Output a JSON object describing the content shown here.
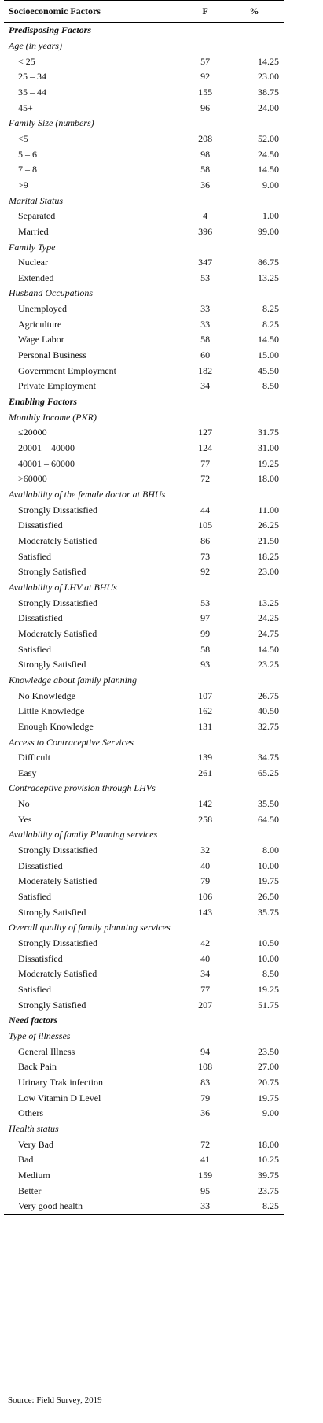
{
  "header": {
    "col1": "Socioeconomic Factors",
    "col2": "F",
    "col3": "%"
  },
  "rows": [
    {
      "kind": "section",
      "label": "Predisposing Factors"
    },
    {
      "kind": "sub",
      "label": "Age (in years)"
    },
    {
      "kind": "item",
      "label": "< 25",
      "f": "57",
      "pct": "14.25"
    },
    {
      "kind": "item",
      "label": "25 – 34",
      "f": "92",
      "pct": "23.00"
    },
    {
      "kind": "item",
      "label": "35 – 44",
      "f": "155",
      "pct": "38.75"
    },
    {
      "kind": "item",
      "label": "45+",
      "f": "96",
      "pct": "24.00"
    },
    {
      "kind": "sub",
      "label": "Family Size (numbers)"
    },
    {
      "kind": "item",
      "label": "<5",
      "f": "208",
      "pct": "52.00"
    },
    {
      "kind": "item",
      "label": "5 – 6",
      "f": "98",
      "pct": "24.50"
    },
    {
      "kind": "item",
      "label": "7 – 8",
      "f": "58",
      "pct": "14.50"
    },
    {
      "kind": "item",
      "label": ">9",
      "f": "36",
      "pct": "9.00"
    },
    {
      "kind": "sub",
      "label": "Marital Status"
    },
    {
      "kind": "item",
      "label": "Separated",
      "f": "4",
      "pct": "1.00"
    },
    {
      "kind": "item",
      "label": "Married",
      "f": "396",
      "pct": "99.00"
    },
    {
      "kind": "sub",
      "label": "Family Type"
    },
    {
      "kind": "item",
      "label": "Nuclear",
      "f": "347",
      "pct": "86.75"
    },
    {
      "kind": "item",
      "label": "Extended",
      "f": "53",
      "pct": "13.25"
    },
    {
      "kind": "sub",
      "label": "Husband Occupations"
    },
    {
      "kind": "item",
      "label": "Unemployed",
      "f": "33",
      "pct": "8.25"
    },
    {
      "kind": "item",
      "label": "Agriculture",
      "f": "33",
      "pct": "8.25"
    },
    {
      "kind": "item",
      "label": "Wage Labor",
      "f": "58",
      "pct": "14.50"
    },
    {
      "kind": "item",
      "label": "Personal Business",
      "f": "60",
      "pct": "15.00"
    },
    {
      "kind": "item",
      "label": "Government Employment",
      "f": "182",
      "pct": "45.50"
    },
    {
      "kind": "item",
      "label": "Private Employment",
      "f": "34",
      "pct": "8.50"
    },
    {
      "kind": "section",
      "label": "Enabling Factors"
    },
    {
      "kind": "sub",
      "label": "Monthly Income (PKR)"
    },
    {
      "kind": "item",
      "label": "≤20000",
      "f": "127",
      "pct": "31.75"
    },
    {
      "kind": "item",
      "label": "20001 – 40000",
      "f": "124",
      "pct": "31.00"
    },
    {
      "kind": "item",
      "label": "40001 – 60000",
      "f": "77",
      "pct": "19.25"
    },
    {
      "kind": "item",
      "label": ">60000",
      "f": "72",
      "pct": "18.00"
    },
    {
      "kind": "sub",
      "label": "Availability of the female doctor at BHUs"
    },
    {
      "kind": "item",
      "label": "Strongly Dissatisfied",
      "f": "44",
      "pct": "11.00"
    },
    {
      "kind": "item",
      "label": "Dissatisfied",
      "f": "105",
      "pct": "26.25"
    },
    {
      "kind": "item",
      "label": "Moderately Satisfied",
      "f": "86",
      "pct": "21.50"
    },
    {
      "kind": "item",
      "label": "Satisfied",
      "f": "73",
      "pct": "18.25"
    },
    {
      "kind": "item",
      "label": "Strongly Satisfied",
      "f": "92",
      "pct": "23.00"
    },
    {
      "kind": "sub",
      "label": "Availability of LHV at BHUs"
    },
    {
      "kind": "item",
      "label": "Strongly Dissatisfied",
      "f": "53",
      "pct": "13.25"
    },
    {
      "kind": "item",
      "label": "Dissatisfied",
      "f": "97",
      "pct": "24.25"
    },
    {
      "kind": "item",
      "label": "Moderately Satisfied",
      "f": "99",
      "pct": "24.75"
    },
    {
      "kind": "item",
      "label": "Satisfied",
      "f": "58",
      "pct": "14.50"
    },
    {
      "kind": "item",
      "label": "Strongly Satisfied",
      "f": "93",
      "pct": "23.25"
    },
    {
      "kind": "sub",
      "label": "Knowledge about family planning"
    },
    {
      "kind": "item",
      "label": "No Knowledge",
      "f": "107",
      "pct": "26.75"
    },
    {
      "kind": "item",
      "label": "Little Knowledge",
      "f": "162",
      "pct": "40.50"
    },
    {
      "kind": "item",
      "label": "Enough Knowledge",
      "f": "131",
      "pct": "32.75"
    },
    {
      "kind": "sub",
      "label": "Access to Contraceptive Services"
    },
    {
      "kind": "item",
      "label": "Difficult",
      "f": "139",
      "pct": "34.75"
    },
    {
      "kind": "item",
      "label": "Easy",
      "f": "261",
      "pct": "65.25"
    },
    {
      "kind": "sub",
      "label": "Contraceptive provision through LHVs"
    },
    {
      "kind": "item",
      "label": "No",
      "f": "142",
      "pct": "35.50"
    },
    {
      "kind": "item",
      "label": "Yes",
      "f": "258",
      "pct": "64.50"
    },
    {
      "kind": "sub",
      "label": "Availability of family Planning services"
    },
    {
      "kind": "item",
      "label": "Strongly Dissatisfied",
      "f": "32",
      "pct": "8.00"
    },
    {
      "kind": "item",
      "label": "Dissatisfied",
      "f": "40",
      "pct": "10.00"
    },
    {
      "kind": "item",
      "label": "Moderately Satisfied",
      "f": "79",
      "pct": "19.75"
    },
    {
      "kind": "item",
      "label": "Satisfied",
      "f": "106",
      "pct": "26.50"
    },
    {
      "kind": "item",
      "label": "Strongly Satisfied",
      "f": "143",
      "pct": "35.75"
    },
    {
      "kind": "sub",
      "label": "Overall quality of family planning services"
    },
    {
      "kind": "item",
      "label": "Strongly Dissatisfied",
      "f": "42",
      "pct": "10.50"
    },
    {
      "kind": "item",
      "label": "Dissatisfied",
      "f": "40",
      "pct": "10.00"
    },
    {
      "kind": "item",
      "label": "Moderately Satisfied",
      "f": "34",
      "pct": "8.50"
    },
    {
      "kind": "item",
      "label": "Satisfied",
      "f": "77",
      "pct": "19.25"
    },
    {
      "kind": "item",
      "label": "Strongly Satisfied",
      "f": "207",
      "pct": "51.75"
    },
    {
      "kind": "section",
      "label": "Need factors"
    },
    {
      "kind": "sub",
      "label": "Type of illnesses"
    },
    {
      "kind": "item",
      "label": "General Illness",
      "f": "94",
      "pct": "23.50"
    },
    {
      "kind": "item",
      "label": "Back Pain",
      "f": "108",
      "pct": "27.00"
    },
    {
      "kind": "item",
      "label": "Urinary Trak infection",
      "f": "83",
      "pct": "20.75"
    },
    {
      "kind": "item",
      "label": "Low Vitamin D Level",
      "f": "79",
      "pct": "19.75"
    },
    {
      "kind": "item",
      "label": "Others",
      "f": "36",
      "pct": "9.00"
    },
    {
      "kind": "sub",
      "label": "Health status"
    },
    {
      "kind": "item",
      "label": "Very Bad",
      "f": "72",
      "pct": "18.00"
    },
    {
      "kind": "item",
      "label": "Bad",
      "f": "41",
      "pct": "10.25"
    },
    {
      "kind": "item",
      "label": "Medium",
      "f": "159",
      "pct": "39.75"
    },
    {
      "kind": "item",
      "label": "Better",
      "f": "95",
      "pct": "23.75"
    },
    {
      "kind": "item",
      "label": "Very good health",
      "f": "33",
      "pct": "8.25"
    }
  ],
  "source": "Source: Field Survey, 2019"
}
